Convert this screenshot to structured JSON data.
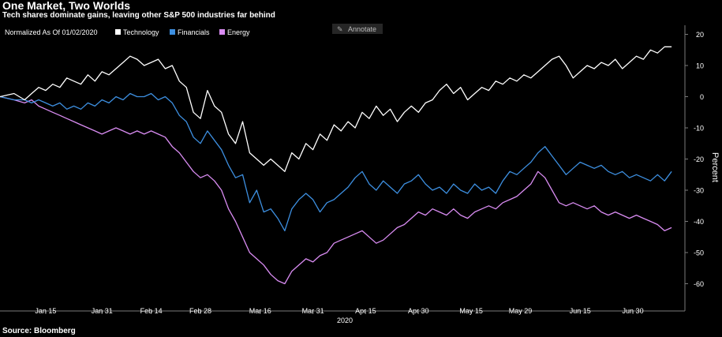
{
  "title": "One Market, Two Worlds",
  "subtitle": "Tech shares dominate gains, leaving other S&P 500 industries far behind",
  "source": "Source: Bloomberg",
  "annotate_label": "Annotate",
  "annotate_icon": "pencil-icon",
  "chart_data": {
    "type": "line",
    "ylabel": "Percent",
    "xlabel": "2020",
    "ylim": [
      -67,
      23
    ],
    "yticks": [
      20,
      10,
      0,
      -10,
      -20,
      -30,
      -40,
      -50,
      -60
    ],
    "grid": false,
    "legend_position": "top-left",
    "legend_title": "Normalized As Of 01/02/2020",
    "x_ticks": [
      {
        "label": "Jan 15",
        "day": 13
      },
      {
        "label": "Jan 31",
        "day": 29
      },
      {
        "label": "Feb 14",
        "day": 43
      },
      {
        "label": "Feb 28",
        "day": 57
      },
      {
        "label": "Mar 16",
        "day": 74
      },
      {
        "label": "Mar 31",
        "day": 89
      },
      {
        "label": "Apr 15",
        "day": 104
      },
      {
        "label": "Apr 30",
        "day": 119
      },
      {
        "label": "May 15",
        "day": 134
      },
      {
        "label": "May 29",
        "day": 148
      },
      {
        "label": "Jun 15",
        "day": 165
      },
      {
        "label": "Jun 30",
        "day": 180
      }
    ],
    "x_range": [
      0,
      193
    ],
    "series": [
      {
        "name": "Technology",
        "color": "#ffffff",
        "points": [
          [
            0,
            0
          ],
          [
            4,
            1
          ],
          [
            7,
            -1
          ],
          [
            9,
            1
          ],
          [
            11,
            3
          ],
          [
            13,
            2
          ],
          [
            15,
            4
          ],
          [
            17,
            3
          ],
          [
            19,
            6
          ],
          [
            21,
            5
          ],
          [
            23,
            4
          ],
          [
            25,
            7
          ],
          [
            27,
            5
          ],
          [
            29,
            8
          ],
          [
            31,
            7
          ],
          [
            33,
            9
          ],
          [
            35,
            11
          ],
          [
            37,
            13
          ],
          [
            39,
            12
          ],
          [
            41,
            10
          ],
          [
            43,
            11
          ],
          [
            45,
            12
          ],
          [
            47,
            9
          ],
          [
            49,
            10
          ],
          [
            51,
            5
          ],
          [
            53,
            3
          ],
          [
            55,
            -5
          ],
          [
            57,
            -7
          ],
          [
            59,
            2
          ],
          [
            61,
            -3
          ],
          [
            63,
            -5
          ],
          [
            65,
            -12
          ],
          [
            67,
            -15
          ],
          [
            69,
            -8
          ],
          [
            71,
            -18
          ],
          [
            73,
            -20
          ],
          [
            75,
            -22
          ],
          [
            77,
            -20
          ],
          [
            79,
            -22
          ],
          [
            81,
            -24
          ],
          [
            83,
            -18
          ],
          [
            85,
            -20
          ],
          [
            87,
            -15
          ],
          [
            89,
            -17
          ],
          [
            91,
            -12
          ],
          [
            93,
            -14
          ],
          [
            95,
            -9
          ],
          [
            97,
            -11
          ],
          [
            99,
            -8
          ],
          [
            101,
            -10
          ],
          [
            103,
            -5
          ],
          [
            105,
            -7
          ],
          [
            107,
            -3
          ],
          [
            109,
            -6
          ],
          [
            111,
            -4
          ],
          [
            113,
            -8
          ],
          [
            115,
            -5
          ],
          [
            117,
            -3
          ],
          [
            119,
            -5
          ],
          [
            121,
            -2
          ],
          [
            123,
            -1
          ],
          [
            125,
            2
          ],
          [
            127,
            4
          ],
          [
            129,
            1
          ],
          [
            131,
            3
          ],
          [
            133,
            -1
          ],
          [
            135,
            1
          ],
          [
            137,
            3
          ],
          [
            139,
            2
          ],
          [
            141,
            5
          ],
          [
            143,
            4
          ],
          [
            145,
            6
          ],
          [
            147,
            5
          ],
          [
            149,
            7
          ],
          [
            151,
            6
          ],
          [
            153,
            8
          ],
          [
            155,
            10
          ],
          [
            157,
            12
          ],
          [
            159,
            13
          ],
          [
            161,
            10
          ],
          [
            163,
            6
          ],
          [
            165,
            8
          ],
          [
            167,
            10
          ],
          [
            169,
            9
          ],
          [
            171,
            11
          ],
          [
            173,
            10
          ],
          [
            175,
            12
          ],
          [
            177,
            9
          ],
          [
            179,
            11
          ],
          [
            181,
            13
          ],
          [
            183,
            12
          ],
          [
            185,
            15
          ],
          [
            187,
            14
          ],
          [
            189,
            16
          ],
          [
            191,
            16
          ]
        ]
      },
      {
        "name": "Financials",
        "color": "#3d8fe0",
        "points": [
          [
            0,
            0
          ],
          [
            4,
            -1
          ],
          [
            7,
            -1
          ],
          [
            9,
            -2
          ],
          [
            11,
            -1
          ],
          [
            13,
            -2
          ],
          [
            15,
            -3
          ],
          [
            17,
            -2
          ],
          [
            19,
            -4
          ],
          [
            21,
            -3
          ],
          [
            23,
            -4
          ],
          [
            25,
            -2
          ],
          [
            27,
            -3
          ],
          [
            29,
            -1
          ],
          [
            31,
            -2
          ],
          [
            33,
            0
          ],
          [
            35,
            -1
          ],
          [
            37,
            1
          ],
          [
            39,
            0
          ],
          [
            41,
            0
          ],
          [
            43,
            1
          ],
          [
            45,
            -1
          ],
          [
            47,
            0
          ],
          [
            49,
            -2
          ],
          [
            51,
            -6
          ],
          [
            53,
            -8
          ],
          [
            55,
            -13
          ],
          [
            57,
            -15
          ],
          [
            59,
            -11
          ],
          [
            61,
            -14
          ],
          [
            63,
            -17
          ],
          [
            65,
            -22
          ],
          [
            67,
            -26
          ],
          [
            69,
            -25
          ],
          [
            71,
            -34
          ],
          [
            73,
            -30
          ],
          [
            75,
            -37
          ],
          [
            77,
            -36
          ],
          [
            79,
            -39
          ],
          [
            81,
            -43
          ],
          [
            83,
            -36
          ],
          [
            85,
            -33
          ],
          [
            87,
            -31
          ],
          [
            89,
            -33
          ],
          [
            91,
            -37
          ],
          [
            93,
            -34
          ],
          [
            95,
            -33
          ],
          [
            97,
            -31
          ],
          [
            99,
            -29
          ],
          [
            101,
            -26
          ],
          [
            103,
            -24
          ],
          [
            105,
            -28
          ],
          [
            107,
            -30
          ],
          [
            109,
            -27
          ],
          [
            111,
            -29
          ],
          [
            113,
            -31
          ],
          [
            115,
            -28
          ],
          [
            117,
            -27
          ],
          [
            119,
            -25
          ],
          [
            121,
            -28
          ],
          [
            123,
            -30
          ],
          [
            125,
            -29
          ],
          [
            127,
            -31
          ],
          [
            129,
            -28
          ],
          [
            131,
            -30
          ],
          [
            133,
            -31
          ],
          [
            135,
            -28
          ],
          [
            137,
            -30
          ],
          [
            139,
            -29
          ],
          [
            141,
            -31
          ],
          [
            143,
            -27
          ],
          [
            145,
            -24
          ],
          [
            147,
            -25
          ],
          [
            149,
            -23
          ],
          [
            151,
            -21
          ],
          [
            153,
            -18
          ],
          [
            155,
            -16
          ],
          [
            157,
            -19
          ],
          [
            159,
            -22
          ],
          [
            161,
            -25
          ],
          [
            163,
            -23
          ],
          [
            165,
            -21
          ],
          [
            167,
            -22
          ],
          [
            169,
            -23
          ],
          [
            171,
            -22
          ],
          [
            173,
            -24
          ],
          [
            175,
            -25
          ],
          [
            177,
            -24
          ],
          [
            179,
            -26
          ],
          [
            181,
            -25
          ],
          [
            183,
            -26
          ],
          [
            185,
            -27
          ],
          [
            187,
            -25
          ],
          [
            189,
            -27
          ],
          [
            191,
            -24
          ]
        ]
      },
      {
        "name": "Energy",
        "color": "#d98cf2",
        "points": [
          [
            0,
            0
          ],
          [
            4,
            -1
          ],
          [
            7,
            -2
          ],
          [
            9,
            -1
          ],
          [
            11,
            -3
          ],
          [
            13,
            -4
          ],
          [
            15,
            -5
          ],
          [
            17,
            -6
          ],
          [
            19,
            -7
          ],
          [
            21,
            -8
          ],
          [
            23,
            -9
          ],
          [
            25,
            -10
          ],
          [
            27,
            -11
          ],
          [
            29,
            -12
          ],
          [
            31,
            -11
          ],
          [
            33,
            -10
          ],
          [
            35,
            -11
          ],
          [
            37,
            -12
          ],
          [
            39,
            -11
          ],
          [
            41,
            -12
          ],
          [
            43,
            -11
          ],
          [
            45,
            -12
          ],
          [
            47,
            -13
          ],
          [
            49,
            -16
          ],
          [
            51,
            -18
          ],
          [
            53,
            -21
          ],
          [
            55,
            -24
          ],
          [
            57,
            -26
          ],
          [
            59,
            -25
          ],
          [
            61,
            -27
          ],
          [
            63,
            -30
          ],
          [
            65,
            -36
          ],
          [
            67,
            -40
          ],
          [
            69,
            -45
          ],
          [
            71,
            -50
          ],
          [
            73,
            -52
          ],
          [
            75,
            -54
          ],
          [
            77,
            -57
          ],
          [
            79,
            -59
          ],
          [
            81,
            -60
          ],
          [
            83,
            -56
          ],
          [
            85,
            -54
          ],
          [
            87,
            -52
          ],
          [
            89,
            -53
          ],
          [
            91,
            -51
          ],
          [
            93,
            -50
          ],
          [
            95,
            -47
          ],
          [
            97,
            -46
          ],
          [
            99,
            -45
          ],
          [
            101,
            -44
          ],
          [
            103,
            -43
          ],
          [
            105,
            -45
          ],
          [
            107,
            -47
          ],
          [
            109,
            -46
          ],
          [
            111,
            -44
          ],
          [
            113,
            -42
          ],
          [
            115,
            -41
          ],
          [
            117,
            -39
          ],
          [
            119,
            -37
          ],
          [
            121,
            -38
          ],
          [
            123,
            -36
          ],
          [
            125,
            -37
          ],
          [
            127,
            -38
          ],
          [
            129,
            -36
          ],
          [
            131,
            -38
          ],
          [
            133,
            -39
          ],
          [
            135,
            -37
          ],
          [
            137,
            -36
          ],
          [
            139,
            -35
          ],
          [
            141,
            -36
          ],
          [
            143,
            -34
          ],
          [
            145,
            -33
          ],
          [
            147,
            -32
          ],
          [
            149,
            -30
          ],
          [
            151,
            -28
          ],
          [
            153,
            -24
          ],
          [
            155,
            -26
          ],
          [
            157,
            -30
          ],
          [
            159,
            -34
          ],
          [
            161,
            -35
          ],
          [
            163,
            -34
          ],
          [
            165,
            -35
          ],
          [
            167,
            -36
          ],
          [
            169,
            -35
          ],
          [
            171,
            -37
          ],
          [
            173,
            -38
          ],
          [
            175,
            -37
          ],
          [
            177,
            -38
          ],
          [
            179,
            -39
          ],
          [
            181,
            -38
          ],
          [
            183,
            -39
          ],
          [
            185,
            -40
          ],
          [
            187,
            -41
          ],
          [
            189,
            -43
          ],
          [
            191,
            -42
          ]
        ]
      }
    ]
  }
}
